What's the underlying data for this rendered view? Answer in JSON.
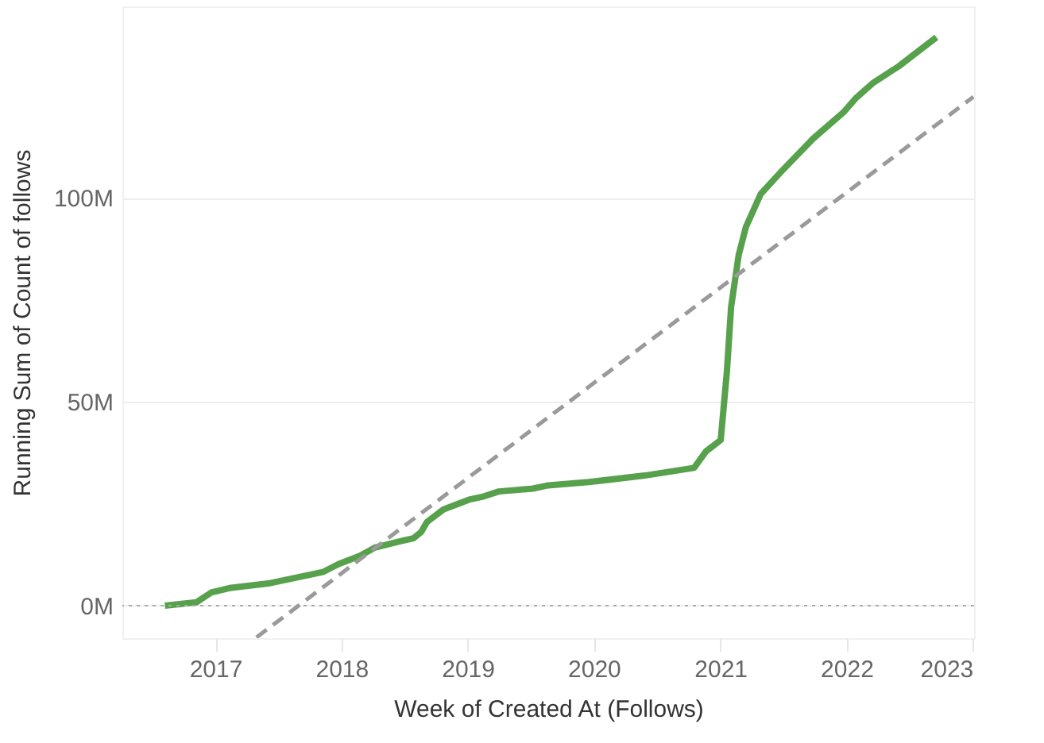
{
  "chart_data": {
    "type": "line",
    "xlabel": "Week of Created At (Follows)",
    "ylabel": "Running Sum of Count of follows",
    "xlim": [
      "2016-04-07",
      "2023-01-05"
    ],
    "xticks": [
      {
        "value": "2017",
        "label": "2017"
      },
      {
        "value": "2018",
        "label": "2018"
      },
      {
        "value": "2019",
        "label": "2019"
      },
      {
        "value": "2020",
        "label": "2020"
      },
      {
        "value": "2021",
        "label": "2021"
      },
      {
        "value": "2022",
        "label": "2022"
      },
      {
        "value": "2023",
        "label": "2023"
      }
    ],
    "ylim": [
      -8,
      147
    ],
    "yticks": [
      {
        "value": 0,
        "label": "0M"
      },
      {
        "value": 50,
        "label": "50M"
      },
      {
        "value": 100,
        "label": "100M"
      }
    ],
    "grid": "y",
    "series": [
      {
        "color": "#57a14c",
        "line_style": "solid",
        "x": [
          "2016-08-08",
          "2016-11-07",
          "2016-12-20",
          "2017-02-11",
          "2017-06-08",
          "2017-09-28",
          "2017-11-10",
          "2017-12-24",
          "2018-02-23",
          "2018-04-07",
          "2018-06-15",
          "2018-07-28",
          "2018-08-19",
          "2018-09-05",
          "2018-10-23",
          "2019-01-05",
          "2019-02-17",
          "2019-04-01",
          "2019-07-09",
          "2019-08-22",
          "2019-12-17",
          "2020-05-27",
          "2020-10-17",
          "2020-11-20",
          "2021-01-02",
          "2021-01-20",
          "2021-02-01",
          "2021-02-23",
          "2021-03-16",
          "2021-04-28",
          "2021-07-02",
          "2021-09-27",
          "2021-12-23",
          "2022-01-27",
          "2022-03-20",
          "2022-06-01",
          "2022-09-18"
        ],
        "values": [
          0,
          0.8,
          3.2,
          4.3,
          5.5,
          7.5,
          8.3,
          10.2,
          12.2,
          14.2,
          15.7,
          16.5,
          18,
          20.5,
          23.6,
          26,
          26.8,
          28,
          28.7,
          29.5,
          30.3,
          31.9,
          33.8,
          37.8,
          40.6,
          57.5,
          73.2,
          86,
          92.9,
          101,
          107,
          114.6,
          121,
          124.4,
          128.3,
          132.3,
          139.4
        ]
      },
      {
        "type": "line",
        "color": "#9a9a9a",
        "line_style": "dashed",
        "x": [
          "2017-04-30",
          "2023-01-03"
        ],
        "values": [
          -7.8,
          124.8
        ]
      }
    ],
    "ref_lines": [
      {
        "axis": "y",
        "value": 0,
        "color": "#aaaaaa",
        "line_style": "dotted"
      }
    ]
  }
}
